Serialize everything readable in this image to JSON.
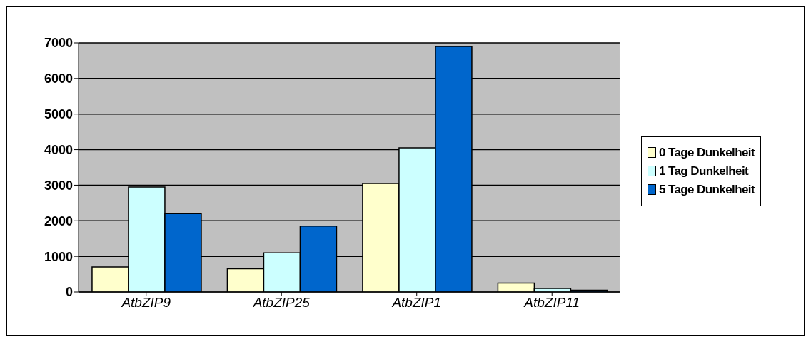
{
  "chart_data": {
    "type": "bar",
    "categories": [
      "AtbZIP9",
      "AtbZIP25",
      "AtbZIP1",
      "AtbZIP11"
    ],
    "series": [
      {
        "name": "0 Tage Dunkelheit",
        "color": "#ffffcc",
        "values": [
          700,
          650,
          3050,
          250
        ]
      },
      {
        "name": "1 Tag Dunkelheit",
        "color": "#ccffff",
        "values": [
          2950,
          1100,
          4050,
          100
        ]
      },
      {
        "name": "5 Tage Dunkelheit",
        "color": "#0066cc",
        "values": [
          2200,
          1850,
          6900,
          50
        ]
      }
    ],
    "ylim": [
      0,
      7000
    ],
    "yticks": [
      0,
      1000,
      2000,
      3000,
      4000,
      5000,
      6000,
      7000
    ],
    "grid": "y",
    "legend": "right"
  }
}
